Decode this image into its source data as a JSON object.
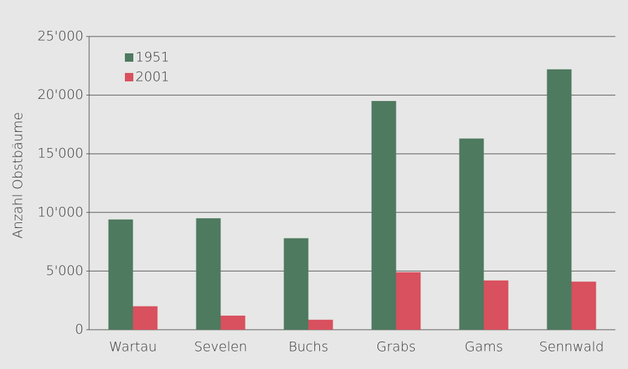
{
  "chart_data": {
    "type": "bar",
    "y_label": "Anzahl Obstbäume",
    "categories": [
      "Wartau",
      "Sevelen",
      "Buchs",
      "Grabs",
      "Gams",
      "Sennwald"
    ],
    "series": [
      {
        "name": "1951",
        "color": "#4e7a5f",
        "values": [
          9400,
          9500,
          7800,
          19500,
          16300,
          22200
        ]
      },
      {
        "name": "2001",
        "color": "#d9505e",
        "values": [
          2000,
          1200,
          850,
          4900,
          4200,
          4100
        ]
      }
    ],
    "ylim": [
      0,
      25000
    ],
    "yticks": [
      0,
      {
        "value": 5000,
        "label": "5'000"
      },
      {
        "value": 10000,
        "label": "10'000"
      },
      {
        "value": 15000,
        "label": "15'000"
      },
      {
        "value": 20000,
        "label": "20'000"
      },
      {
        "value": 25000,
        "label": "25'000"
      }
    ],
    "grid": true,
    "legend": "top-left"
  }
}
